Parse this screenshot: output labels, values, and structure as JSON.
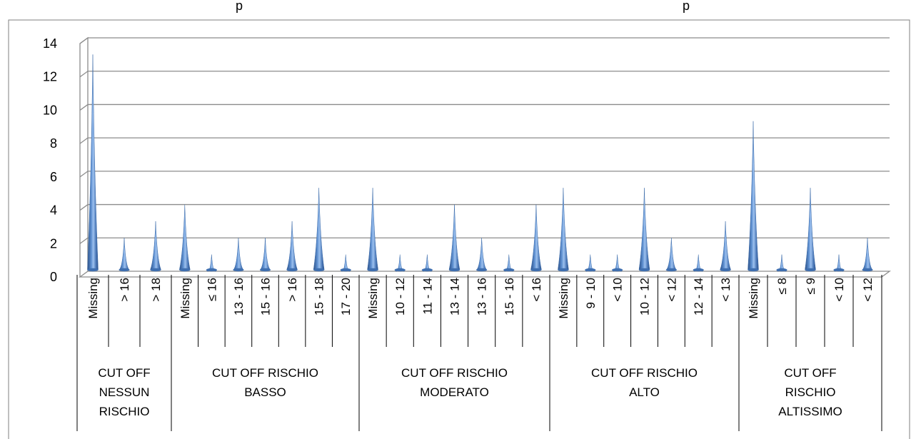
{
  "chart_data": {
    "type": "bar",
    "title": "",
    "xlabel": "",
    "ylabel": "",
    "ylim": [
      0,
      14
    ],
    "yticks": [
      "0",
      "2",
      "4",
      "6",
      "8",
      "10",
      "12",
      "14"
    ],
    "grid": true,
    "legend": "none",
    "bar_shape": "cone",
    "bar_color": "#4f81bd",
    "groups": [
      {
        "label": "CUT OFF NESSUN RISCHIO",
        "label_lines": [
          "CUT OFF",
          "NESSUN",
          "RISCHIO"
        ],
        "categories": [
          "Missing",
          "> 16",
          "> 18"
        ],
        "values": [
          13,
          2,
          3
        ]
      },
      {
        "label": "CUT OFF RISCHIO BASSO",
        "label_lines": [
          "CUT OFF RISCHIO",
          "BASSO"
        ],
        "categories": [
          "Missing",
          "≤ 16",
          "13 - 16",
          "15 - 16",
          "> 16",
          "15 - 18",
          "17 - 20"
        ],
        "values": [
          4,
          1,
          2,
          2,
          3,
          5,
          1
        ]
      },
      {
        "label": "CUT OFF RISCHIO MODERATO",
        "label_lines": [
          "CUT OFF RISCHIO",
          "MODERATO"
        ],
        "categories": [
          "Missing",
          "10 - 12",
          "11 - 14",
          "13 - 14",
          "13 - 16",
          "15 - 16",
          "< 16"
        ],
        "values": [
          5,
          1,
          1,
          4,
          2,
          1,
          4
        ]
      },
      {
        "label": "CUT OFF RISCHIO ALTO",
        "label_lines": [
          "CUT OFF RISCHIO",
          "ALTO"
        ],
        "categories": [
          "Missing",
          "9 - 10",
          "< 10",
          "10 - 12",
          "< 12",
          "12 - 14",
          "< 13"
        ],
        "values": [
          5,
          1,
          1,
          5,
          2,
          1,
          3
        ]
      },
      {
        "label": "CUT OFF RISCHIO ALTISSIMO",
        "label_lines": [
          "CUT OFF",
          "RISCHIO",
          "ALTISSIMO"
        ],
        "categories": [
          "Missing",
          "≤ 8",
          "≤ 9",
          "< 10",
          "< 12"
        ],
        "values": [
          9,
          1,
          5,
          1,
          2
        ]
      }
    ]
  },
  "title_fragments": {
    "left": "p",
    "right": "p"
  }
}
